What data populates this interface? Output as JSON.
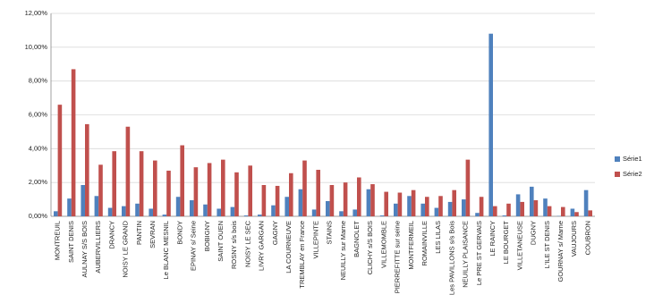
{
  "chart_data": {
    "type": "bar",
    "categories": [
      "MONTREUIL",
      "SAINT DENIS",
      "AULNAY S/S BOIS",
      "AUBERVILLIERS",
      "DRANCY",
      "NOISY LE GRAND",
      "PANTIN",
      "SEVRAN",
      "Le BLANC MESNIL",
      "BONDY",
      "EPINAY s/ Seine",
      "BOBIGNY",
      "SAINT OUEN",
      "ROSNY s/s bois",
      "NOISY LE SEC",
      "LIVRY GARGAN",
      "GAGNY",
      "LA COURNEUVE",
      "TREMBLAY en France",
      "VILLEPINTE",
      "STAINS",
      "NEUILLY sur Marne",
      "BAGNOLET",
      "CLICHY s/S BOIS",
      "VILLEMOMBLE",
      "PIERREFITTE sur seine",
      "MONTFERMEIL",
      "ROMAINVILLE",
      "LES LILAS",
      "Les PAVILLONS s/s Bois",
      "NEUILLY PLAISANCE",
      "Le PRE ST GERVAIS",
      "LE RAINCY",
      "LE BOURGET",
      "VILLETANEUSE",
      "DUGNY",
      "L'ILE ST DENIS",
      "GOURNAY s/ Marne",
      "VAUJOURS",
      "COUBRON"
    ],
    "series": [
      {
        "name": "Série1",
        "color": "#4f81bd",
        "values": [
          0.3,
          1.05,
          1.85,
          1.2,
          0.5,
          0.6,
          0.75,
          0.45,
          0.1,
          1.15,
          0.95,
          0.7,
          0.45,
          0.55,
          0.05,
          0.1,
          0.65,
          1.15,
          1.6,
          0.4,
          0.9,
          0.3,
          0.4,
          1.6,
          0.05,
          0.75,
          1.2,
          0.75,
          0.5,
          0.85,
          1.0,
          0.2,
          10.8,
          0.05,
          1.3,
          1.75,
          1.05,
          0.02,
          0.45,
          1.55
        ]
      },
      {
        "name": "Série2",
        "color": "#c0504d",
        "values": [
          6.6,
          8.7,
          5.45,
          3.05,
          3.85,
          5.3,
          3.85,
          3.3,
          2.7,
          4.2,
          2.9,
          3.15,
          3.35,
          2.6,
          3.0,
          1.85,
          1.8,
          2.55,
          3.3,
          2.75,
          1.85,
          2.0,
          2.3,
          1.9,
          1.45,
          1.4,
          1.55,
          1.15,
          1.2,
          1.55,
          3.35,
          1.15,
          0.6,
          0.75,
          0.85,
          0.95,
          0.6,
          0.55,
          0.25,
          0.35
        ]
      }
    ],
    "ylim": [
      0,
      12
    ],
    "yticks": [
      {
        "value": 0,
        "label": "0,00%"
      },
      {
        "value": 2,
        "label": "2,00%"
      },
      {
        "value": 4,
        "label": "4,00%"
      },
      {
        "value": 6,
        "label": "6,00%"
      },
      {
        "value": 8,
        "label": "8,00%"
      },
      {
        "value": 10,
        "label": "10,00%"
      },
      {
        "value": 12,
        "label": "12,00%"
      }
    ],
    "grid": true,
    "legend": "right"
  }
}
